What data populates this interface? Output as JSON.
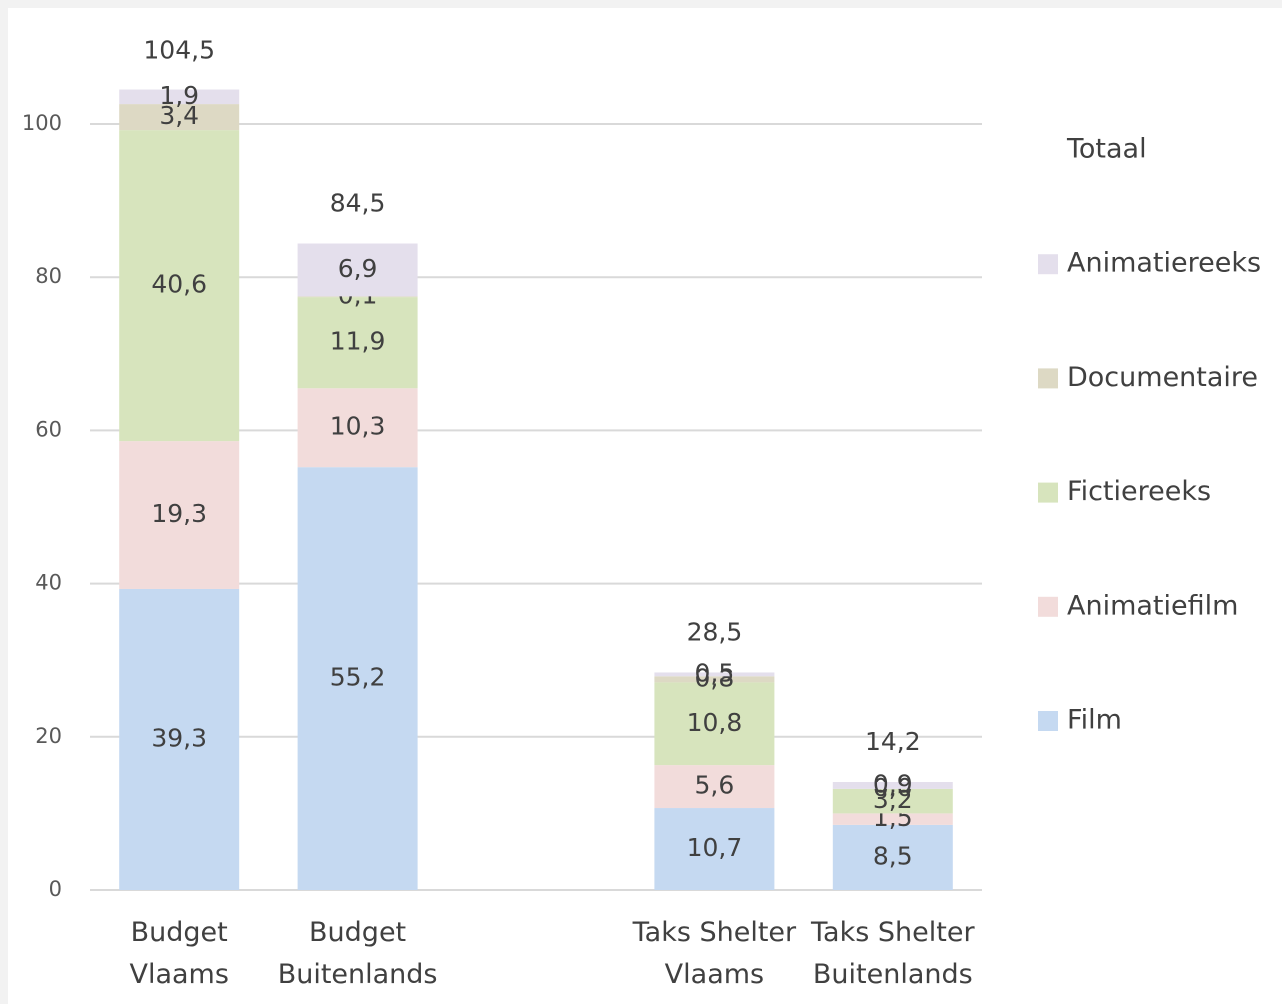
{
  "chart_data": {
    "type": "stacked_bar",
    "categories": [
      [
        "Budget",
        "Vlaams"
      ],
      [
        "Budget",
        "Buitenlands"
      ],
      null,
      [
        "Taks Shelter",
        "Vlaams"
      ],
      [
        "Taks Shelter",
        "Buitenlands"
      ]
    ],
    "series": [
      {
        "name": "Film",
        "color": "#c5d9f1",
        "values": [
          39.3,
          55.2,
          null,
          10.7,
          8.5
        ],
        "value_labels": [
          "39,3",
          "55,2",
          null,
          "10,7",
          "8,5"
        ]
      },
      {
        "name": "Animatiefilm",
        "color": "#f2dcdb",
        "values": [
          19.3,
          10.3,
          null,
          5.6,
          1.5
        ],
        "value_labels": [
          "19,3",
          "10,3",
          null,
          "5,6",
          "1,5"
        ]
      },
      {
        "name": "Fictiereeks",
        "color": "#d7e4bd",
        "values": [
          40.6,
          11.9,
          null,
          10.8,
          3.2
        ],
        "value_labels": [
          "40,6",
          "11,9",
          null,
          "10,8",
          "3,2"
        ]
      },
      {
        "name": "Documentaire",
        "color": "#ddd9c4",
        "values": [
          3.4,
          0.1,
          null,
          0.8,
          0.0
        ],
        "value_labels": [
          "3,4",
          "0,1",
          null,
          "0,8",
          "0,0"
        ]
      },
      {
        "name": "Animatiereeks",
        "color": "#e4dfec",
        "values": [
          1.9,
          6.9,
          null,
          0.5,
          0.9
        ],
        "value_labels": [
          "1,9",
          "6,9",
          null,
          "0,5",
          "0,9"
        ]
      }
    ],
    "totals": {
      "name": "Totaal",
      "values": [
        104.5,
        84.5,
        null,
        28.5,
        14.2
      ],
      "value_labels": [
        "104,5",
        "84,5",
        null,
        "28,5",
        "14,2"
      ]
    },
    "ylim": [
      0,
      100
    ],
    "yticks": [
      0,
      20,
      40,
      60,
      80,
      100
    ],
    "grid": true,
    "legend": "right"
  }
}
